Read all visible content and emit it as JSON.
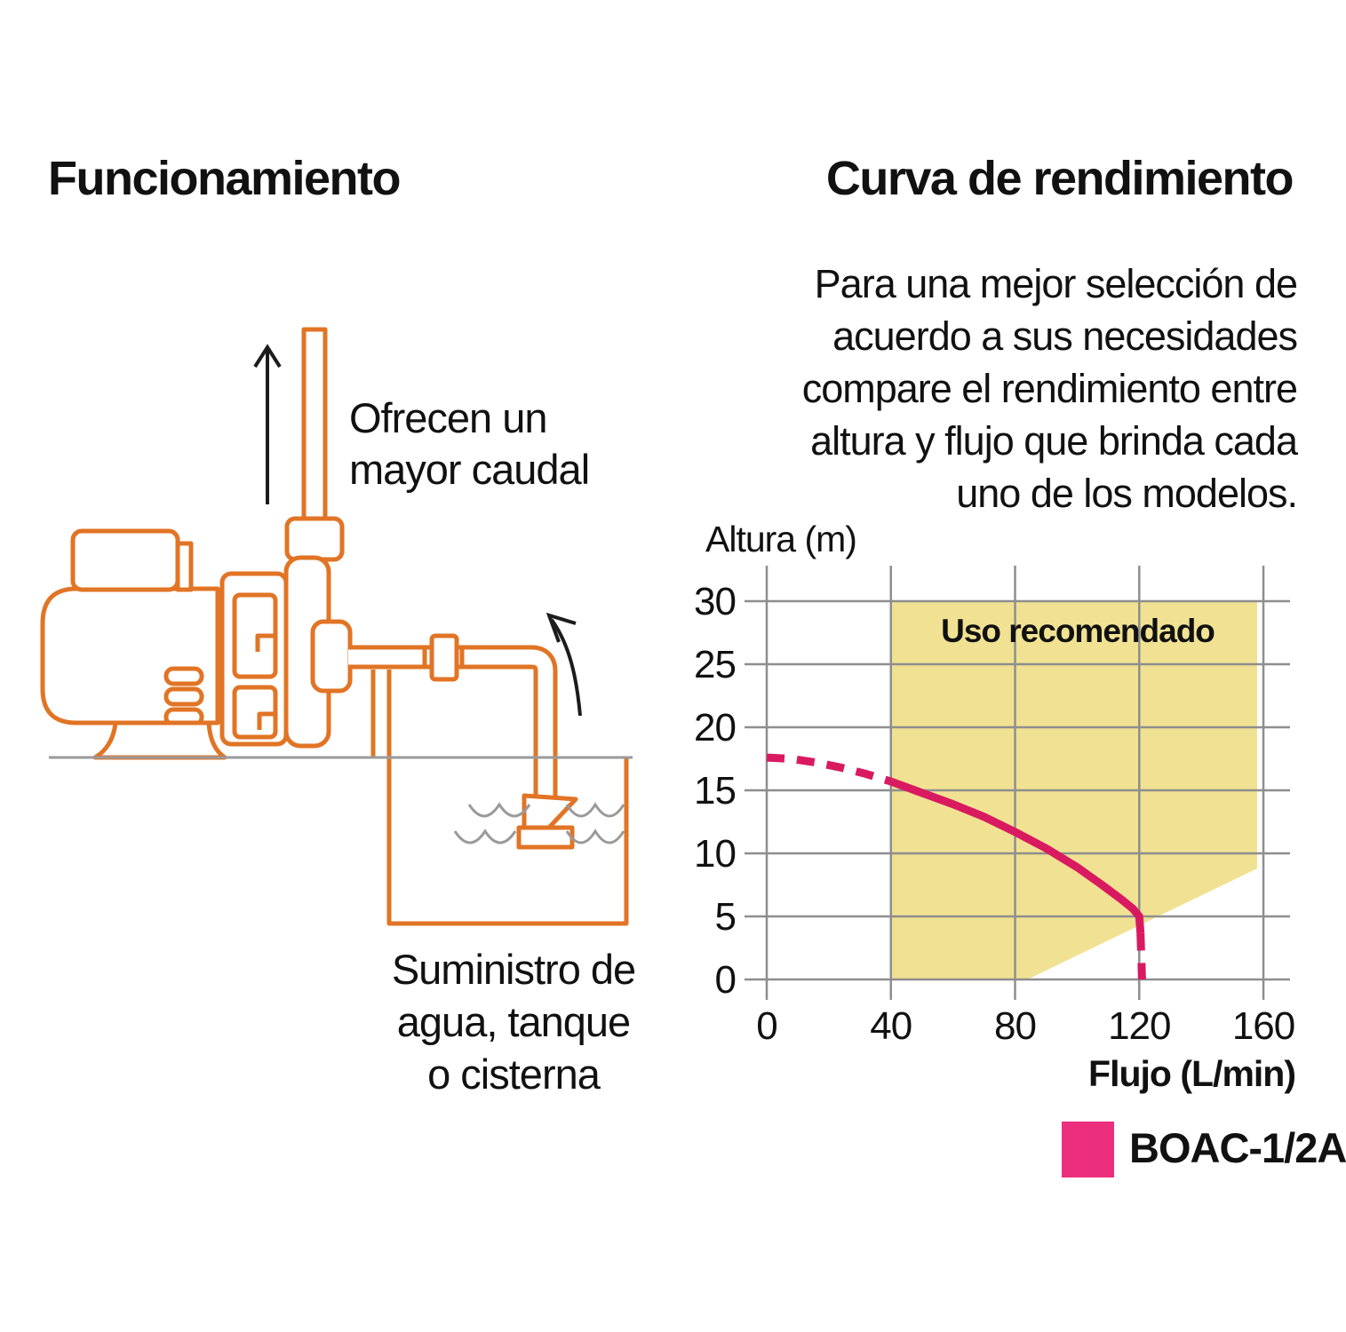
{
  "left_panel": {
    "title": "Funcionamiento",
    "pipe_label": "Ofrecen un\nmayor caudal",
    "tank_label": "Suministro de\nagua, tanque\no cisterna"
  },
  "right_panel": {
    "title": "Curva de rendimiento",
    "description": "Para una mejor selección de\nacuerdo a sus necesidades\ncompare el rendimiento entre\naltura y flujo que brinda cada\nuno de los modelos.",
    "legend": {
      "label": "BOAC-1/2A",
      "color": "#EC2E7E"
    }
  },
  "chart_data": {
    "type": "line",
    "title": "Curva de rendimiento",
    "xlabel": "Flujo (L/min)",
    "ylabel": "Altura (m)",
    "xticks": [
      0,
      40,
      80,
      120,
      160
    ],
    "yticks": [
      0,
      5,
      10,
      15,
      20,
      25,
      30
    ],
    "xlim": [
      0,
      168
    ],
    "ylim": [
      0,
      33
    ],
    "grid": true,
    "region": {
      "label": "Uso recomendado",
      "color": "#F0E292",
      "polygon": [
        [
          40,
          0
        ],
        [
          84,
          0
        ],
        [
          158,
          8.8
        ],
        [
          158,
          30
        ],
        [
          40,
          30
        ]
      ]
    },
    "series": [
      {
        "name": "BOAC-1/2A",
        "color": "#D91A60",
        "segments": [
          {
            "style": "dashed",
            "points": [
              [
                0,
                17.6
              ],
              [
                8,
                17.5
              ],
              [
                16,
                17.2
              ],
              [
                24,
                16.8
              ],
              [
                32,
                16.3
              ],
              [
                40,
                15.7
              ]
            ]
          },
          {
            "style": "solid",
            "points": [
              [
                40,
                15.7
              ],
              [
                50,
                14.8
              ],
              [
                60,
                13.9
              ],
              [
                70,
                12.9
              ],
              [
                80,
                11.7
              ],
              [
                90,
                10.4
              ],
              [
                100,
                8.9
              ],
              [
                108,
                7.5
              ],
              [
                114,
                6.4
              ],
              [
                118,
                5.6
              ],
              [
                120,
                5.0
              ],
              [
                120.4,
                3.7
              ]
            ]
          },
          {
            "style": "dashed",
            "points": [
              [
                120.4,
                3.7
              ],
              [
                120.9,
                0
              ]
            ]
          }
        ]
      }
    ]
  },
  "colors": {
    "diagram_orange": "#E17425",
    "grid_gray": "#8E8E8E",
    "ground_gray": "#9A9A9A",
    "text_black": "#111111"
  }
}
